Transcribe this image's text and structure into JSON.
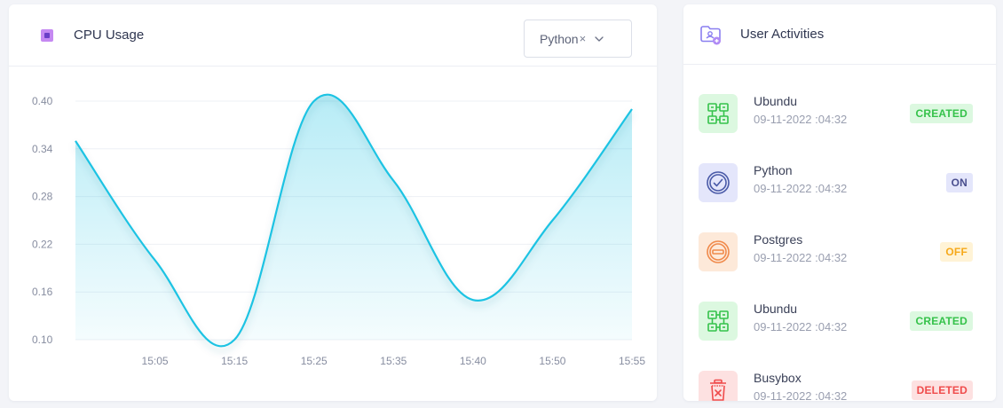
{
  "colors": {
    "accent": "#1ec3e3",
    "created_bg": "#dcf8e0",
    "created_text": "#35c24a",
    "on_bg": "#e4e6fb",
    "on_text": "#4a4f8f",
    "off_bg": "#fff3d6",
    "off_text": "#f6a91b",
    "deleted_bg": "#fde1e1",
    "deleted_text": "#ef4b4b"
  },
  "cpu_card": {
    "title": "CPU Usage",
    "icon": "cpu-chip-icon",
    "select": {
      "value": "Python",
      "clear": "×",
      "icon": "chevron-down-icon"
    }
  },
  "chart_data": {
    "type": "area",
    "title": "",
    "xlabel": "",
    "ylabel": "",
    "ylim": [
      0.1,
      0.4
    ],
    "yticks": [
      "0.40",
      "0.34",
      "0.28",
      "0.22",
      "0.16",
      "0.10"
    ],
    "yticks_values": [
      0.4,
      0.34,
      0.28,
      0.22,
      0.16,
      0.1
    ],
    "x_tick_labels": [
      "15:05",
      "15:15",
      "15:25",
      "15:35",
      "15:40",
      "15:50",
      "15:55"
    ],
    "grid": true,
    "legend": "none",
    "x": [
      "",
      "15:05",
      "15:15",
      "15:25",
      "15:35",
      "15:40",
      "15:50",
      "15:55"
    ],
    "series": [
      {
        "values": [
          0.35,
          0.2,
          0.1,
          0.4,
          0.3,
          0.15,
          0.25,
          0.39
        ]
      }
    ]
  },
  "activities": {
    "title": "User Activities",
    "icon": "folder-user-icon",
    "items": [
      {
        "name": "Ubundu",
        "time": "09-11-2022 :04:32",
        "status": "CREATED",
        "icon": "network-nodes-icon",
        "kind": "created"
      },
      {
        "name": "Python",
        "time": "09-11-2022 :04:32",
        "status": "ON",
        "icon": "check-circle-icon",
        "kind": "on"
      },
      {
        "name": "Postgres",
        "time": "09-11-2022 :04:32",
        "status": "OFF",
        "icon": "minus-circle-icon",
        "kind": "off"
      },
      {
        "name": "Ubundu",
        "time": "09-11-2022 :04:32",
        "status": "CREATED",
        "icon": "network-nodes-icon",
        "kind": "created"
      },
      {
        "name": "Busybox",
        "time": "09-11-2022 :04:32",
        "status": "DELETED",
        "icon": "trash-icon",
        "kind": "deleted"
      }
    ]
  }
}
